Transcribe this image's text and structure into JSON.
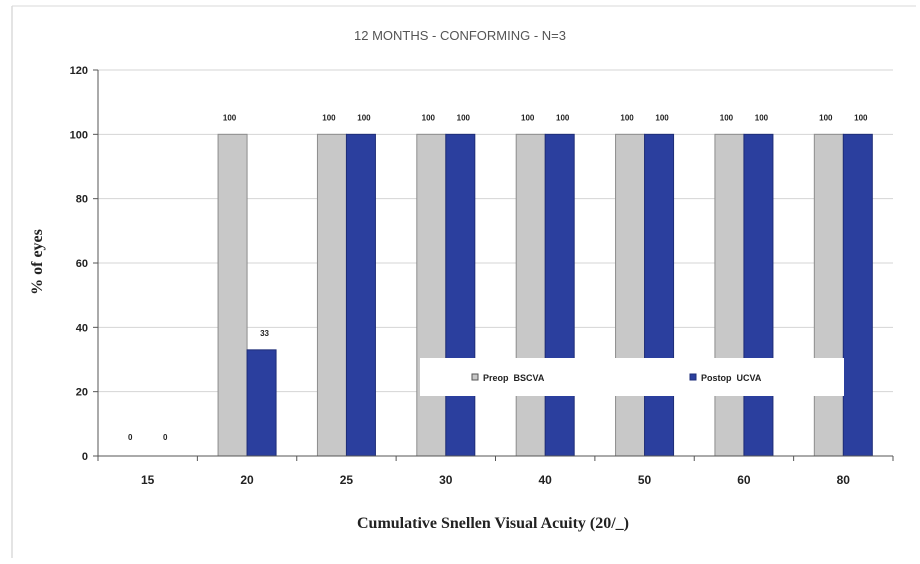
{
  "chart_data": {
    "type": "bar",
    "title": "12 MONTHS - CONFORMING - N=3",
    "xlabel": "Cumulative Snellen Visual Acuity (20/_)",
    "ylabel": "% of eyes",
    "categories": [
      "15",
      "20",
      "25",
      "30",
      "40",
      "50",
      "60",
      "80"
    ],
    "series": [
      {
        "name": "Preop  BSCVA",
        "values": [
          0,
          100,
          100,
          100,
          100,
          100,
          100,
          100
        ],
        "color": "#c8c8c8"
      },
      {
        "name": "Postop  UCVA",
        "values": [
          0,
          33,
          100,
          100,
          100,
          100,
          100,
          100
        ],
        "color": "#2b3f9e"
      }
    ],
    "ylim": [
      0,
      120
    ],
    "yticks": [
      0,
      20,
      40,
      60,
      80,
      100,
      120
    ],
    "grid": true,
    "legend": "bottom-right"
  }
}
